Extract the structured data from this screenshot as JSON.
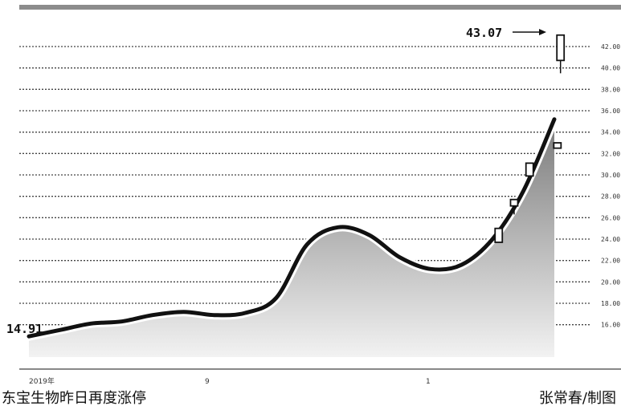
{
  "chart_data": {
    "type": "line",
    "title": "",
    "xlabel": "",
    "ylabel": "",
    "x_tick_labels": [
      "2019年",
      "9",
      "1"
    ],
    "y_tick_labels": [
      "16.00",
      "18.00",
      "20.00",
      "22.00",
      "24.00",
      "26.00",
      "28.00",
      "30.00",
      "32.00",
      "34.00",
      "36.00",
      "38.00",
      "40.00",
      "42.00"
    ],
    "ylim": [
      15,
      43.5
    ],
    "grid": true,
    "series": [
      {
        "values": [
          14.91,
          15.5,
          16.1,
          16.3,
          16.9,
          17.2,
          16.9,
          17.1,
          18.5,
          23.5,
          25.1,
          24.4,
          22.3,
          21.2,
          21.6,
          24.0,
          28.5,
          35.2
        ]
      }
    ],
    "candles": [
      {
        "index": 15.2,
        "open": 23.7,
        "close": 25.0,
        "high": 25.0,
        "low": 23.7
      },
      {
        "index": 15.7,
        "open": 27.1,
        "close": 27.7,
        "high": 27.7,
        "low": 26.3
      },
      {
        "index": 16.2,
        "open": 29.9,
        "close": 31.1,
        "high": 31.1,
        "low": 29.9
      },
      {
        "index": 17.1,
        "open": 32.5,
        "close": 33.0,
        "high": 33.0,
        "low": 32.5
      },
      {
        "index": 17.2,
        "open": 40.7,
        "close": 43.07,
        "high": 43.07,
        "low": 39.5
      }
    ],
    "annotations": {
      "start_value": "14.91",
      "end_value": "43.07"
    }
  },
  "captions": {
    "left": "东宝生物昨日再度涨停",
    "right": "张常春/制图"
  },
  "colors": {
    "line": "#111111",
    "grid": "#444444",
    "fill_top": "#7a7a7a",
    "fill_bottom": "#f2f2f2",
    "top_bar": "#8c8c8c"
  }
}
